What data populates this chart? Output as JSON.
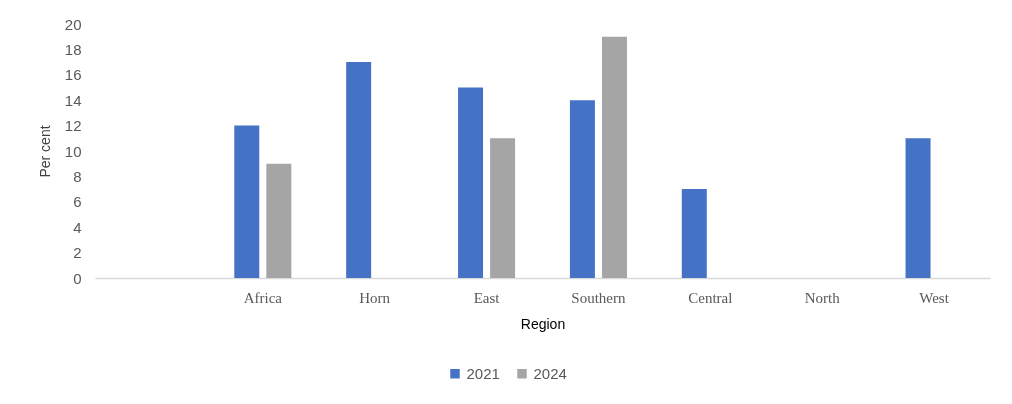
{
  "chart_data": {
    "type": "bar",
    "xlabel": "Region",
    "ylabel": "Per cent",
    "categories": [
      null,
      "Africa",
      "Horn",
      "East",
      "Southern",
      "Central",
      "North",
      "West"
    ],
    "series": [
      {
        "name": "2021",
        "color": "#4472c4",
        "values": [
          null,
          12,
          17,
          15,
          14,
          7,
          null,
          11
        ]
      },
      {
        "name": "2024",
        "color": "#a5a5a5",
        "values": [
          null,
          9,
          null,
          11,
          19,
          null,
          null,
          null
        ]
      }
    ],
    "ylim": [
      0,
      20
    ],
    "yticks": [
      0,
      2,
      4,
      6,
      8,
      10,
      12,
      14,
      16,
      18,
      20
    ],
    "grid": false,
    "legend": "bottom"
  }
}
